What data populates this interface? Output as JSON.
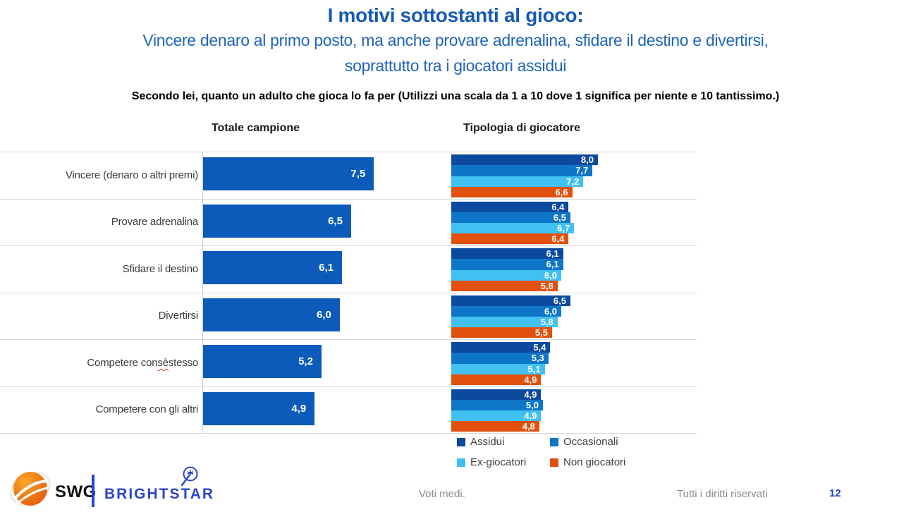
{
  "slide": {
    "title": "I motivi sottostanti al gioco:",
    "subtitle_line1": "Vincere denaro al primo posto, ma anche provare adrenalina, sfidare il destino e divertirsi,",
    "subtitle_line2": "soprattutto tra i giocatori assidui",
    "question": "Secondo lei, quanto un adulto che gioca lo fa per (Utilizzi una scala da 1 a 10 dove 1 significa per niente e 10 tantissimo.)",
    "misspelled_word": "sè"
  },
  "chart_data": [
    {
      "type": "bar",
      "title": "Totale campione",
      "orientation": "horizontal",
      "categories": [
        "Vincere (denaro o altri premi)",
        "Provare adrenalina",
        "Sfidare il destino",
        "Divertirsi",
        "Competere con sè stesso",
        "Competere con gli altri"
      ],
      "values": [
        7.5,
        6.5,
        6.1,
        6.0,
        5.2,
        4.9
      ],
      "xlim": [
        0,
        10
      ],
      "bar_color": "#0C5BBB",
      "grid": true,
      "data_labels": "inside-end white, comma decimal"
    },
    {
      "type": "bar",
      "title": "Tipologia di giocatore",
      "orientation": "horizontal",
      "categories": [
        "Vincere (denaro o altri premi)",
        "Provare adrenalina",
        "Sfidare il destino",
        "Divertirsi",
        "Competere con sè stesso",
        "Competere con gli altri"
      ],
      "series": [
        {
          "name": "Assidui",
          "color": "#0B4A9E",
          "values": [
            8.0,
            6.4,
            6.1,
            6.5,
            5.4,
            4.9
          ]
        },
        {
          "name": "Occasionali",
          "color": "#0E76C8",
          "values": [
            7.7,
            6.5,
            6.1,
            6.0,
            5.3,
            5.0
          ]
        },
        {
          "name": "Ex-giocatori",
          "color": "#41C0F2",
          "values": [
            7.2,
            6.7,
            6.0,
            5.8,
            5.1,
            4.9
          ]
        },
        {
          "name": "Non giocatori",
          "color": "#E2500E",
          "values": [
            6.6,
            6.4,
            5.8,
            5.5,
            4.9,
            4.8
          ]
        }
      ],
      "xlim": [
        0,
        10
      ],
      "grid": true,
      "legend_position": "bottom",
      "data_labels": "inside-end white, comma decimal"
    }
  ],
  "footer": {
    "note": "Voti medi.",
    "rights": "Tutti i diritti riservati",
    "page_number": "12",
    "logo_swg": "SWG",
    "logo_brightstar": "BRIGHTSTAR"
  },
  "colors": {
    "title_blue": "#1659B5",
    "subtitle_blue": "#1F64B8",
    "grid_gray": "#D9D9D9",
    "page_blue": "#1F3FBF",
    "brightstar_blue": "#2B45C8",
    "divider_blue": "#2244E0",
    "swg_orange_dark": "#E4590E",
    "swg_orange_light": "#F9A826"
  }
}
